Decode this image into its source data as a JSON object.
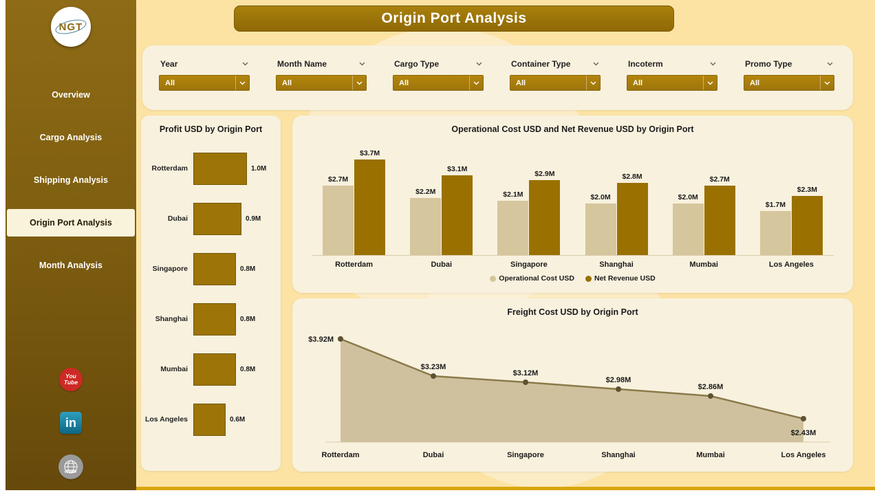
{
  "header": {
    "title": "Origin Port Analysis"
  },
  "sidebar": {
    "logo_text": "NGT",
    "nav": [
      {
        "label": "Overview",
        "active": false
      },
      {
        "label": "Cargo Analysis",
        "active": false
      },
      {
        "label": "Shipping Analysis",
        "active": false
      },
      {
        "label": "Origin Port Analysis",
        "active": true
      },
      {
        "label": "Month Analysis",
        "active": false
      }
    ],
    "social": {
      "youtube_line1": "You",
      "youtube_line2": "Tube",
      "linkedin_text": "in",
      "web_text": "www"
    }
  },
  "filters": [
    {
      "label": "Year",
      "value": "All"
    },
    {
      "label": "Month Name",
      "value": "All"
    },
    {
      "label": "Cargo Type",
      "value": "All"
    },
    {
      "label": "Container Type",
      "value": "All"
    },
    {
      "label": "Incoterm",
      "value": "All"
    },
    {
      "label": "Promo Type",
      "value": "All"
    }
  ],
  "chart_data": [
    {
      "type": "bar",
      "orientation": "horizontal",
      "title": "Profit USD by Origin Port",
      "categories": [
        "Rotterdam",
        "Dubai",
        "Singapore",
        "Shanghai",
        "Mumbai",
        "Los Angeles"
      ],
      "values": [
        1.0,
        0.9,
        0.8,
        0.8,
        0.8,
        0.6
      ],
      "labels": [
        "1.0M",
        "0.9M",
        "0.8M",
        "0.8M",
        "0.8M",
        "0.6M"
      ],
      "bar_color": "#9C7408",
      "xlim": [
        0,
        1.05
      ]
    },
    {
      "type": "bar",
      "title": "Operational Cost USD and Net Revenue USD by Origin Port",
      "categories": [
        "Rotterdam",
        "Dubai",
        "Singapore",
        "Shanghai",
        "Mumbai",
        "Los Angeles"
      ],
      "series": [
        {
          "name": "Operational Cost USD",
          "color": "#D6C69E",
          "values": [
            2.7,
            2.2,
            2.1,
            2.0,
            2.0,
            1.7
          ],
          "labels": [
            "$2.7M",
            "$2.2M",
            "$2.1M",
            "$2.0M",
            "$2.0M",
            "$1.7M"
          ]
        },
        {
          "name": "Net Revenue USD",
          "color": "#9A7100",
          "values": [
            3.7,
            3.1,
            2.9,
            2.8,
            2.7,
            2.3
          ],
          "labels": [
            "$3.7M",
            "$3.1M",
            "$2.9M",
            "$2.8M",
            "$2.7M",
            "$2.3M"
          ]
        }
      ],
      "ylim": [
        0,
        4.0
      ],
      "legend_position": "bottom"
    },
    {
      "type": "area",
      "title": "Freight Cost USD by Origin Port",
      "categories": [
        "Rotterdam",
        "Dubai",
        "Singapore",
        "Shanghai",
        "Mumbai",
        "Los Angeles"
      ],
      "values": [
        3.92,
        3.23,
        3.12,
        2.98,
        2.86,
        2.43
      ],
      "labels": [
        "$3.92M",
        "$3.23M",
        "$3.12M",
        "$2.98M",
        "$2.86M",
        "$2.43M"
      ],
      "line_color": "#8A7A4A",
      "fill_color": "#CFC19D",
      "dot_color": "#5E5232",
      "ylim": [
        2.0,
        4.1
      ]
    }
  ],
  "colors": {
    "background": "#FCE3A4",
    "panel": "#F8F1DE",
    "accent_gold": "#9A7609",
    "tan": "#D6C69E",
    "sidebar_top": "#8E6B16",
    "sidebar_bottom": "#66490B"
  }
}
